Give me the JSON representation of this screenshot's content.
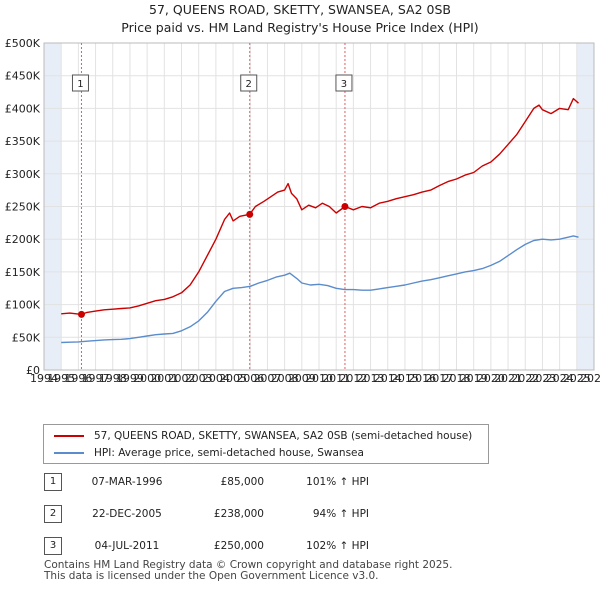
{
  "header": {
    "title": "57, QUEENS ROAD, SKETTY, SWANSEA, SA2 0SB",
    "subtitle": "Price paid vs. HM Land Registry's House Price Index (HPI)"
  },
  "colors": {
    "property": "#cc0000",
    "hpi": "#5b8ccc",
    "shade": "#e8eef8",
    "marker_line": "#e06060"
  },
  "chart_data": {
    "type": "line",
    "xlim": [
      1994,
      2026
    ],
    "ylim": [
      0,
      500000
    ],
    "x_ticks": [
      "1994",
      "1995",
      "1996",
      "1997",
      "1998",
      "1999",
      "2000",
      "2001",
      "2002",
      "2003",
      "2004",
      "2005",
      "2006",
      "2007",
      "2008",
      "2009",
      "2010",
      "2011",
      "2012",
      "2013",
      "2014",
      "2015",
      "2016",
      "2017",
      "2018",
      "2019",
      "2020",
      "2021",
      "2022",
      "2023",
      "2024",
      "2025",
      "2026"
    ],
    "y_ticks": [
      {
        "value": 0,
        "label": "£0"
      },
      {
        "value": 50000,
        "label": "£50K"
      },
      {
        "value": 100000,
        "label": "£100K"
      },
      {
        "value": 150000,
        "label": "£150K"
      },
      {
        "value": 200000,
        "label": "£200K"
      },
      {
        "value": 250000,
        "label": "£250K"
      },
      {
        "value": 300000,
        "label": "£300K"
      },
      {
        "value": 350000,
        "label": "£350K"
      },
      {
        "value": 400000,
        "label": "£400K"
      },
      {
        "value": 450000,
        "label": "£450K"
      },
      {
        "value": 500000,
        "label": "£500K"
      }
    ],
    "grid": true,
    "shaded_ranges": [
      [
        1994,
        1995
      ],
      [
        2025,
        2026
      ]
    ],
    "series": [
      {
        "name": "57, QUEENS ROAD, SKETTY, SWANSEA, SA2 0SB (semi-detached house)",
        "color": "#cc0000",
        "points": [
          [
            1995.0,
            86000
          ],
          [
            1995.5,
            87000
          ],
          [
            1996.18,
            85000
          ],
          [
            1996.5,
            88000
          ],
          [
            1997.0,
            90000
          ],
          [
            1997.5,
            92000
          ],
          [
            1998.0,
            93000
          ],
          [
            1998.5,
            94000
          ],
          [
            1999.0,
            95000
          ],
          [
            1999.5,
            98000
          ],
          [
            2000.0,
            102000
          ],
          [
            2000.5,
            106000
          ],
          [
            2001.0,
            108000
          ],
          [
            2001.5,
            112000
          ],
          [
            2002.0,
            118000
          ],
          [
            2002.5,
            130000
          ],
          [
            2003.0,
            150000
          ],
          [
            2003.5,
            175000
          ],
          [
            2004.0,
            200000
          ],
          [
            2004.5,
            230000
          ],
          [
            2004.8,
            240000
          ],
          [
            2005.0,
            228000
          ],
          [
            2005.4,
            235000
          ],
          [
            2005.97,
            238000
          ],
          [
            2006.3,
            250000
          ],
          [
            2006.8,
            258000
          ],
          [
            2007.2,
            265000
          ],
          [
            2007.6,
            272000
          ],
          [
            2008.0,
            275000
          ],
          [
            2008.2,
            285000
          ],
          [
            2008.4,
            270000
          ],
          [
            2008.7,
            262000
          ],
          [
            2009.0,
            245000
          ],
          [
            2009.4,
            252000
          ],
          [
            2009.8,
            248000
          ],
          [
            2010.2,
            255000
          ],
          [
            2010.6,
            250000
          ],
          [
            2011.0,
            240000
          ],
          [
            2011.51,
            250000
          ],
          [
            2012.0,
            245000
          ],
          [
            2012.5,
            250000
          ],
          [
            2013.0,
            248000
          ],
          [
            2013.5,
            255000
          ],
          [
            2014.0,
            258000
          ],
          [
            2014.5,
            262000
          ],
          [
            2015.0,
            265000
          ],
          [
            2015.5,
            268000
          ],
          [
            2016.0,
            272000
          ],
          [
            2016.5,
            275000
          ],
          [
            2017.0,
            282000
          ],
          [
            2017.5,
            288000
          ],
          [
            2018.0,
            292000
          ],
          [
            2018.5,
            298000
          ],
          [
            2019.0,
            302000
          ],
          [
            2019.5,
            312000
          ],
          [
            2020.0,
            318000
          ],
          [
            2020.5,
            330000
          ],
          [
            2021.0,
            345000
          ],
          [
            2021.5,
            360000
          ],
          [
            2022.0,
            380000
          ],
          [
            2022.5,
            400000
          ],
          [
            2022.8,
            405000
          ],
          [
            2023.0,
            398000
          ],
          [
            2023.5,
            392000
          ],
          [
            2024.0,
            400000
          ],
          [
            2024.5,
            398000
          ],
          [
            2024.8,
            415000
          ],
          [
            2025.1,
            408000
          ]
        ]
      },
      {
        "name": "HPI: Average price, semi-detached house, Swansea",
        "color": "#5b8ccc",
        "points": [
          [
            1995.0,
            42000
          ],
          [
            1995.5,
            42500
          ],
          [
            1996.0,
            43000
          ],
          [
            1996.5,
            44000
          ],
          [
            1997.0,
            45000
          ],
          [
            1997.5,
            46000
          ],
          [
            1998.0,
            46500
          ],
          [
            1998.5,
            47000
          ],
          [
            1999.0,
            48000
          ],
          [
            1999.5,
            50000
          ],
          [
            2000.0,
            52000
          ],
          [
            2000.5,
            54000
          ],
          [
            2001.0,
            55000
          ],
          [
            2001.5,
            56000
          ],
          [
            2002.0,
            60000
          ],
          [
            2002.5,
            66000
          ],
          [
            2003.0,
            75000
          ],
          [
            2003.5,
            88000
          ],
          [
            2004.0,
            105000
          ],
          [
            2004.5,
            120000
          ],
          [
            2005.0,
            125000
          ],
          [
            2005.5,
            126000
          ],
          [
            2006.0,
            128000
          ],
          [
            2006.5,
            133000
          ],
          [
            2007.0,
            137000
          ],
          [
            2007.5,
            142000
          ],
          [
            2008.0,
            145000
          ],
          [
            2008.3,
            148000
          ],
          [
            2008.7,
            140000
          ],
          [
            2009.0,
            133000
          ],
          [
            2009.5,
            130000
          ],
          [
            2010.0,
            131000
          ],
          [
            2010.5,
            129000
          ],
          [
            2011.0,
            125000
          ],
          [
            2011.5,
            123000
          ],
          [
            2012.0,
            123000
          ],
          [
            2012.5,
            122000
          ],
          [
            2013.0,
            122000
          ],
          [
            2013.5,
            124000
          ],
          [
            2014.0,
            126000
          ],
          [
            2014.5,
            128000
          ],
          [
            2015.0,
            130000
          ],
          [
            2015.5,
            133000
          ],
          [
            2016.0,
            136000
          ],
          [
            2016.5,
            138000
          ],
          [
            2017.0,
            141000
          ],
          [
            2017.5,
            144000
          ],
          [
            2018.0,
            147000
          ],
          [
            2018.5,
            150000
          ],
          [
            2019.0,
            152000
          ],
          [
            2019.5,
            155000
          ],
          [
            2020.0,
            160000
          ],
          [
            2020.5,
            166000
          ],
          [
            2021.0,
            175000
          ],
          [
            2021.5,
            184000
          ],
          [
            2022.0,
            192000
          ],
          [
            2022.5,
            198000
          ],
          [
            2023.0,
            200000
          ],
          [
            2023.5,
            199000
          ],
          [
            2024.0,
            200000
          ],
          [
            2024.5,
            203000
          ],
          [
            2024.8,
            205000
          ],
          [
            2025.1,
            203000
          ]
        ]
      }
    ],
    "sale_markers": [
      {
        "label": "1",
        "x": 1996.18,
        "y": 85000
      },
      {
        "label": "2",
        "x": 2005.97,
        "y": 238000
      },
      {
        "label": "3",
        "x": 2011.51,
        "y": 250000
      }
    ],
    "legend": [
      {
        "label": "57, QUEENS ROAD, SKETTY, SWANSEA, SA2 0SB (semi-detached house)",
        "color": "#cc0000"
      },
      {
        "label": "HPI: Average price, semi-detached house, Swansea",
        "color": "#5b8ccc"
      }
    ]
  },
  "sales": [
    {
      "num": "1",
      "date": "07-MAR-1996",
      "price": "£85,000",
      "hpi": "101% ↑ HPI"
    },
    {
      "num": "2",
      "date": "22-DEC-2005",
      "price": "£238,000",
      "hpi": "94% ↑ HPI"
    },
    {
      "num": "3",
      "date": "04-JUL-2011",
      "price": "£250,000",
      "hpi": "102% ↑ HPI"
    }
  ],
  "footer": {
    "line1": "Contains HM Land Registry data © Crown copyright and database right 2025.",
    "line2": "This data is licensed under the Open Government Licence v3.0."
  }
}
